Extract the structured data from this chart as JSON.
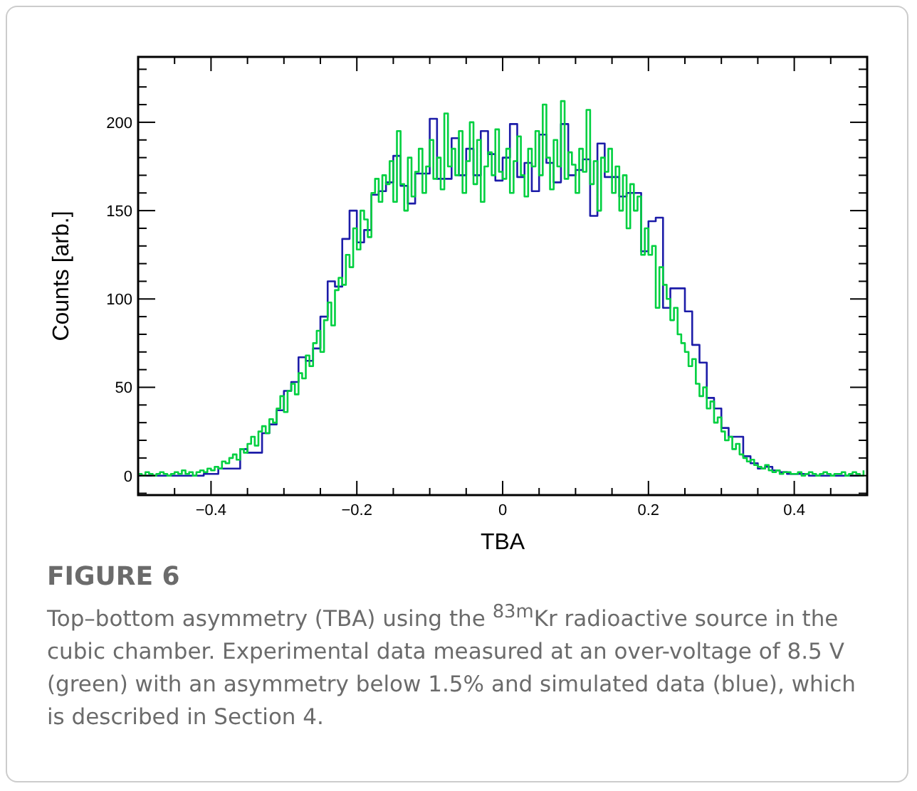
{
  "chart_data": {
    "type": "step",
    "xlabel": "TBA",
    "ylabel": "Counts [arb.]",
    "xlim": [
      -0.5,
      0.5
    ],
    "ylim": [
      -11,
      237
    ],
    "xticks": [
      {
        "value": -0.5,
        "label": null
      },
      {
        "value": -0.45,
        "label": null
      },
      {
        "value": -0.4,
        "label": "−0.4"
      },
      {
        "value": -0.35,
        "label": null
      },
      {
        "value": -0.3,
        "label": null
      },
      {
        "value": -0.25,
        "label": null
      },
      {
        "value": -0.2,
        "label": "−0.2"
      },
      {
        "value": -0.15,
        "label": null
      },
      {
        "value": -0.1,
        "label": null
      },
      {
        "value": -0.05,
        "label": null
      },
      0,
      {
        "value": 0.05,
        "label": null
      },
      {
        "value": 0.1,
        "label": null
      },
      {
        "value": 0.15,
        "label": null
      },
      0.2,
      {
        "value": 0.25,
        "label": null
      },
      {
        "value": 0.3,
        "label": null
      },
      {
        "value": 0.35,
        "label": null
      },
      0.4,
      {
        "value": 0.45,
        "label": null
      },
      {
        "value": 0.5,
        "label": null
      }
    ],
    "yticks": [
      {
        "value": -10,
        "label": null
      },
      0,
      {
        "value": 10,
        "label": null
      },
      {
        "value": 20,
        "label": null
      },
      {
        "value": 30,
        "label": null
      },
      {
        "value": 40,
        "label": null
      },
      50,
      {
        "value": 60,
        "label": null
      },
      {
        "value": 70,
        "label": null
      },
      {
        "value": 80,
        "label": null
      },
      {
        "value": 90,
        "label": null
      },
      100,
      {
        "value": 110,
        "label": null
      },
      {
        "value": 120,
        "label": null
      },
      {
        "value": 130,
        "label": null
      },
      {
        "value": 140,
        "label": null
      },
      150,
      {
        "value": 160,
        "label": null
      },
      {
        "value": 170,
        "label": null
      },
      {
        "value": 180,
        "label": null
      },
      {
        "value": 190,
        "label": null
      },
      200,
      {
        "value": 210,
        "label": null
      },
      {
        "value": 220,
        "label": null
      },
      {
        "value": 230,
        "label": null
      }
    ],
    "grid": false,
    "series": [
      {
        "color": "#00d040",
        "x": [
          -0.5,
          -0.495,
          -0.49,
          -0.485,
          -0.48,
          -0.475,
          -0.47,
          -0.465,
          -0.46,
          -0.455,
          -0.45,
          -0.445,
          -0.44,
          -0.435,
          -0.43,
          -0.425,
          -0.42,
          -0.415,
          -0.41,
          -0.405,
          -0.4,
          -0.395,
          -0.39,
          -0.385,
          -0.38,
          -0.375,
          -0.37,
          -0.365,
          -0.36,
          -0.355,
          -0.35,
          -0.345,
          -0.34,
          -0.335,
          -0.33,
          -0.325,
          -0.32,
          -0.315,
          -0.31,
          -0.305,
          -0.3,
          -0.295,
          -0.29,
          -0.285,
          -0.28,
          -0.275,
          -0.27,
          -0.265,
          -0.26,
          -0.255,
          -0.25,
          -0.245,
          -0.24,
          -0.235,
          -0.23,
          -0.225,
          -0.22,
          -0.215,
          -0.21,
          -0.205,
          -0.2,
          -0.195,
          -0.19,
          -0.185,
          -0.18,
          -0.175,
          -0.17,
          -0.165,
          -0.16,
          -0.155,
          -0.15,
          -0.145,
          -0.14,
          -0.135,
          -0.13,
          -0.125,
          -0.12,
          -0.115,
          -0.11,
          -0.105,
          -0.1,
          -0.095,
          -0.09,
          -0.085,
          -0.08,
          -0.075,
          -0.07,
          -0.065,
          -0.06,
          -0.055,
          -0.05,
          -0.045,
          -0.04,
          -0.035,
          -0.03,
          -0.025,
          -0.02,
          -0.015,
          -0.01,
          -0.005,
          0,
          0.005,
          0.01,
          0.015,
          0.02,
          0.025,
          0.03,
          0.035,
          0.04,
          0.045,
          0.05,
          0.055,
          0.06,
          0.065,
          0.07,
          0.075,
          0.08,
          0.085,
          0.09,
          0.095,
          0.1,
          0.105,
          0.11,
          0.115,
          0.12,
          0.125,
          0.13,
          0.135,
          0.14,
          0.145,
          0.15,
          0.155,
          0.16,
          0.165,
          0.17,
          0.175,
          0.18,
          0.185,
          0.19,
          0.195,
          0.2,
          0.205,
          0.21,
          0.215,
          0.22,
          0.225,
          0.23,
          0.235,
          0.24,
          0.245,
          0.25,
          0.255,
          0.26,
          0.265,
          0.27,
          0.275,
          0.28,
          0.285,
          0.29,
          0.295,
          0.3,
          0.305,
          0.31,
          0.315,
          0.32,
          0.325,
          0.33,
          0.335,
          0.34,
          0.345,
          0.35,
          0.355,
          0.36,
          0.365,
          0.37,
          0.375,
          0.38,
          0.385,
          0.39,
          0.395,
          0.4,
          0.405,
          0.41,
          0.415,
          0.42,
          0.425,
          0.43,
          0.435,
          0.44,
          0.445,
          0.45,
          0.455,
          0.46,
          0.465,
          0.47,
          0.475,
          0.48,
          0.485,
          0.49,
          0.495
        ],
        "values": [
          1,
          0,
          2,
          1,
          0,
          1,
          2,
          1,
          0,
          1,
          2,
          1,
          3,
          1,
          2,
          0,
          2,
          3,
          2,
          4,
          3,
          5,
          4,
          8,
          7,
          10,
          12,
          9,
          15,
          13,
          18,
          22,
          17,
          25,
          28,
          24,
          32,
          30,
          38,
          45,
          36,
          48,
          52,
          46,
          58,
          55,
          68,
          62,
          75,
          82,
          70,
          88,
          98,
          85,
          105,
          112,
          108,
          125,
          118,
          140,
          128,
          150,
          145,
          135,
          160,
          168,
          155,
          170,
          165,
          178,
          155,
          195,
          165,
          150,
          180,
          158,
          172,
          185,
          160,
          175,
          190,
          168,
          180,
          162,
          205,
          175,
          185,
          170,
          195,
          160,
          178,
          200,
          165,
          190,
          155,
          175,
          183,
          170,
          196,
          172,
          168,
          185,
          160,
          178,
          192,
          170,
          158,
          185,
          175,
          195,
          170,
          210,
          180,
          162,
          190,
          175,
          212,
          168,
          183,
          176,
          160,
          185,
          172,
          207,
          165,
          178,
          150,
          180,
          172,
          185,
          160,
          175,
          150,
          170,
          140,
          165,
          150,
          158,
          125,
          140,
          125,
          130,
          95,
          118,
          108,
          100,
          88,
          95,
          80,
          75,
          70,
          62,
          66,
          52,
          45,
          50,
          38,
          42,
          30,
          33,
          25,
          20,
          22,
          15,
          18,
          12,
          10,
          8,
          9,
          6,
          5,
          4,
          6,
          3,
          2,
          3,
          1,
          2,
          2,
          1,
          1,
          2,
          0,
          1,
          2,
          1,
          0,
          1,
          2,
          1,
          0,
          1,
          1,
          2,
          0,
          1,
          2,
          1,
          0,
          3
        ]
      },
      {
        "color": "#1c1ca8",
        "x": [
          -0.5,
          -0.49,
          -0.48,
          -0.47,
          -0.46,
          -0.45,
          -0.44,
          -0.43,
          -0.42,
          -0.41,
          -0.4,
          -0.39,
          -0.38,
          -0.37,
          -0.36,
          -0.35,
          -0.34,
          -0.33,
          -0.32,
          -0.31,
          -0.3,
          -0.29,
          -0.28,
          -0.27,
          -0.26,
          -0.25,
          -0.24,
          -0.23,
          -0.22,
          -0.21,
          -0.2,
          -0.19,
          -0.18,
          -0.17,
          -0.16,
          -0.15,
          -0.14,
          -0.13,
          -0.12,
          -0.11,
          -0.1,
          -0.09,
          -0.08,
          -0.07,
          -0.06,
          -0.05,
          -0.04,
          -0.03,
          -0.02,
          -0.01,
          0,
          0.01,
          0.02,
          0.03,
          0.04,
          0.05,
          0.06,
          0.07,
          0.08,
          0.09,
          0.1,
          0.11,
          0.12,
          0.13,
          0.14,
          0.15,
          0.16,
          0.17,
          0.18,
          0.19,
          0.2,
          0.21,
          0.22,
          0.23,
          0.24,
          0.25,
          0.26,
          0.27,
          0.28,
          0.29,
          0.3,
          0.31,
          0.32,
          0.33,
          0.34,
          0.35,
          0.36,
          0.37,
          0.38,
          0.39,
          0.4,
          0.41,
          0.42,
          0.43,
          0.44,
          0.45,
          0.46,
          0.47,
          0.48,
          0.49
        ],
        "values": [
          0,
          0,
          0,
          0,
          0,
          0,
          0,
          0,
          0,
          1,
          1,
          4,
          4,
          4,
          15,
          13,
          13,
          24,
          29,
          37,
          48,
          53,
          67,
          65,
          72,
          90,
          110,
          107,
          134,
          150,
          132,
          139,
          159,
          161,
          166,
          181,
          164,
          154,
          171,
          171,
          202,
          168,
          168,
          191,
          170,
          185,
          170,
          195,
          182,
          167,
          180,
          199,
          169,
          177,
          161,
          193,
          177,
          166,
          199,
          170,
          173,
          179,
          147,
          188,
          169,
          169,
          158,
          160,
          160,
          127,
          144,
          146,
          95,
          106,
          106,
          93,
          74,
          64,
          44,
          38,
          27,
          22,
          22,
          11,
          7,
          4,
          5,
          3,
          2,
          1,
          1,
          1,
          0,
          0,
          0,
          0,
          0,
          0,
          0,
          0
        ]
      }
    ],
    "annotations": [
      "FIGURE 6",
      "Top–bottom asymmetry (TBA) using the $^{83m}$Kr radioactive source in the cubic chamber. Experimental data measured at an over-voltage of 8.5 V (green) with an asymmetry below 1.5% and simulated data (blue), which is described in Section 4."
    ]
  }
}
